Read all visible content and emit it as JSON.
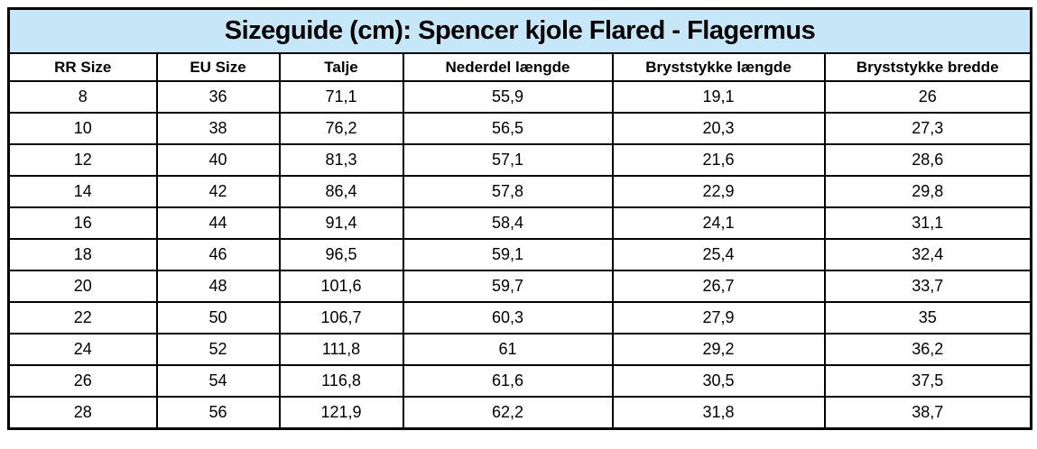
{
  "title": "Sizeguide (cm): Spencer kjole Flared - Flagermus",
  "table": {
    "headers": [
      "RR Size",
      "EU Size",
      "Talje",
      "Nederdel længde",
      "Bryststykke længde",
      "Bryststykke bredde"
    ],
    "rows": [
      [
        "8",
        "36",
        "71,1",
        "55,9",
        "19,1",
        "26"
      ],
      [
        "10",
        "38",
        "76,2",
        "56,5",
        "20,3",
        "27,3"
      ],
      [
        "12",
        "40",
        "81,3",
        "57,1",
        "21,6",
        "28,6"
      ],
      [
        "14",
        "42",
        "86,4",
        "57,8",
        "22,9",
        "29,8"
      ],
      [
        "16",
        "44",
        "91,4",
        "58,4",
        "24,1",
        "31,1"
      ],
      [
        "18",
        "46",
        "96,5",
        "59,1",
        "25,4",
        "32,4"
      ],
      [
        "20",
        "48",
        "101,6",
        "59,7",
        "26,7",
        "33,7"
      ],
      [
        "22",
        "50",
        "106,7",
        "60,3",
        "27,9",
        "35"
      ],
      [
        "24",
        "52",
        "111,8",
        "61",
        "29,2",
        "36,2"
      ],
      [
        "26",
        "54",
        "116,8",
        "61,6",
        "30,5",
        "37,5"
      ],
      [
        "28",
        "56",
        "121,9",
        "62,2",
        "31,8",
        "38,7"
      ]
    ]
  },
  "colors": {
    "title_bg": "#C6E7F7",
    "border": "#000000",
    "text": "#000000",
    "background": "#FFFFFF"
  }
}
